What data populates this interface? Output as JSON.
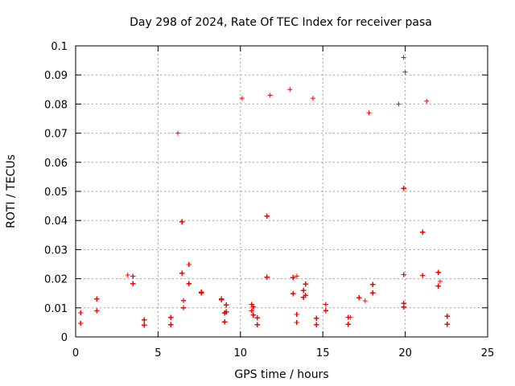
{
  "chart_data": {
    "type": "scatter",
    "title": "Day 298 of 2024, Rate Of TEC Index for receiver pasa",
    "xlabel": "GPS time / hours",
    "ylabel": "ROTI / TECUs",
    "xlim": [
      0,
      25
    ],
    "ylim": [
      0,
      0.1
    ],
    "x_ticks": [
      "0",
      "5",
      "10",
      "15",
      "20",
      "25"
    ],
    "y_ticks": [
      "0",
      "0.01",
      "0.02",
      "0.03",
      "0.04",
      "0.05",
      "0.06",
      "0.07",
      "0.08",
      "0.09",
      "0.1"
    ],
    "grid": true,
    "marker": "+",
    "color": "#ff0000",
    "data_gaps_hours": [
      [
        1.4,
        1.8
      ],
      [
        4.7,
        5.7
      ]
    ],
    "notable_points": [
      {
        "x": 6.2,
        "y": 0.07
      },
      {
        "x": 10.1,
        "y": 0.082
      },
      {
        "x": 11.8,
        "y": 0.083
      },
      {
        "x": 13.0,
        "y": 0.085
      },
      {
        "x": 14.4,
        "y": 0.082
      },
      {
        "x": 17.8,
        "y": 0.077
      },
      {
        "x": 19.6,
        "y": 0.08
      },
      {
        "x": 19.9,
        "y": 0.096
      },
      {
        "x": 20.0,
        "y": 0.091
      },
      {
        "x": 21.3,
        "y": 0.081
      }
    ]
  }
}
